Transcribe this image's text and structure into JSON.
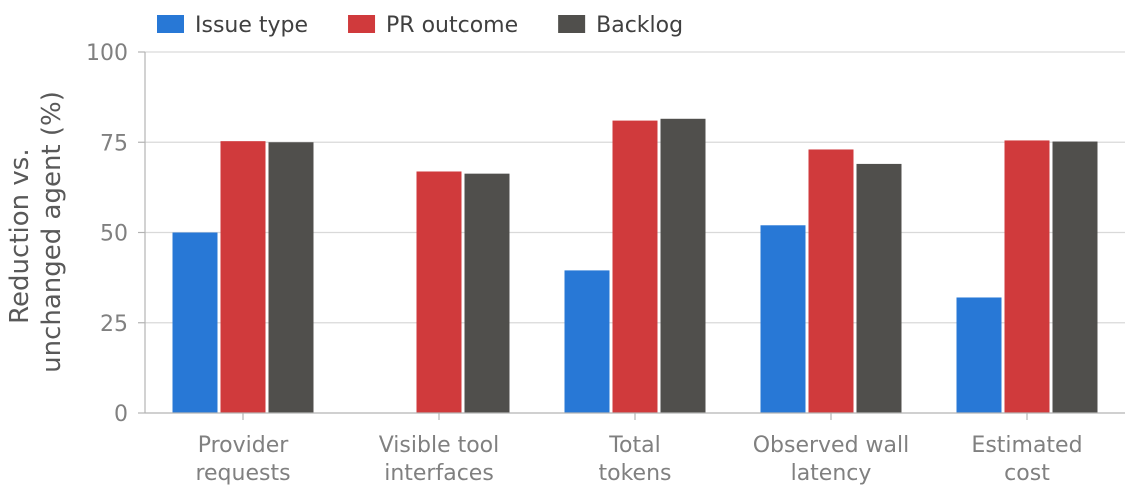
{
  "chart_data": {
    "type": "bar",
    "categories": [
      [
        "Provider",
        "requests"
      ],
      [
        "Visible tool",
        "interfaces"
      ],
      [
        "Total",
        "tokens"
      ],
      [
        "Observed wall",
        "latency"
      ],
      [
        "Estimated",
        "cost"
      ]
    ],
    "series": [
      {
        "name": "Issue type",
        "color": "#2878d6",
        "values": [
          50,
          0,
          39.5,
          52,
          32
        ]
      },
      {
        "name": "PR outcome",
        "color": "#d03a3c",
        "values": [
          75.3,
          66.9,
          81,
          73,
          75.5
        ]
      },
      {
        "name": "Backlog",
        "color": "#504f4c",
        "values": [
          75,
          66.3,
          81.5,
          69,
          75.2
        ]
      }
    ],
    "ylabel": [
      "Reduction vs.",
      "unchanged agent (%)"
    ],
    "ylim": [
      0,
      100
    ],
    "yticks": [
      0,
      25,
      50,
      75,
      100
    ],
    "grid": true,
    "legend": "top-left"
  }
}
